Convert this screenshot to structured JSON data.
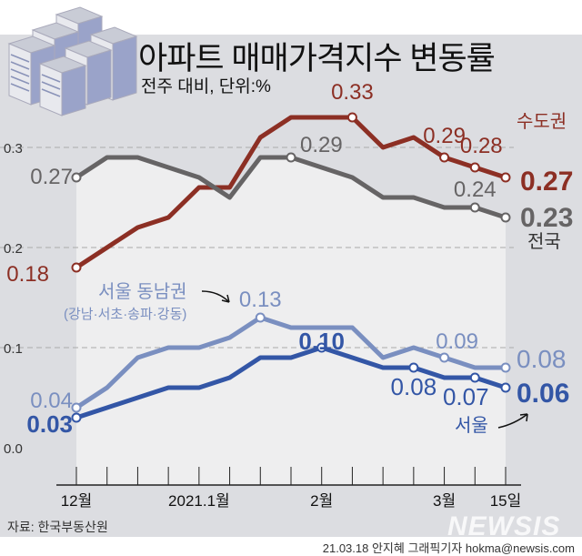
{
  "header": {
    "title": "아파트 매매가격지수 변동률",
    "subtitle": "전주 대비, 단위:%"
  },
  "footer": {
    "source": "자료: 한국부동산원",
    "credit": "21.03.18 안지혜 그래픽기자 hokma@newsis.com",
    "logo": "NEWSIS"
  },
  "chart_data": {
    "type": "line",
    "title": "아파트 매매가격지수 변동률",
    "subtitle": "전주 대비, 단위:%",
    "x_tick_labels": [
      {
        "index": 0,
        "label": "12월"
      },
      {
        "index": 4,
        "label": "2021.1월"
      },
      {
        "index": 8,
        "label": "2월"
      },
      {
        "index": 12,
        "label": "3월"
      },
      {
        "index": 14,
        "label": "15일"
      }
    ],
    "y_ticks": [
      "0.0",
      "0.1",
      "0.2",
      "0.3"
    ],
    "ylim": [
      0,
      0.3
    ],
    "grid": "dashed horizontal",
    "series": [
      {
        "name": "수도권",
        "color": "#8c2f24",
        "values": [
          0.18,
          0.2,
          0.22,
          0.23,
          0.26,
          0.26,
          0.31,
          0.33,
          0.33,
          0.33,
          0.3,
          0.31,
          0.29,
          0.28,
          0.27
        ],
        "labels": [
          {
            "index": 0,
            "text": "0.18"
          },
          {
            "index": 9,
            "text": "0.33"
          },
          {
            "index": 12,
            "text": "0.29"
          },
          {
            "index": 13,
            "text": "0.28"
          },
          {
            "index": 14,
            "text": "0.27"
          }
        ]
      },
      {
        "name": "전국",
        "color": "#666465",
        "values": [
          0.27,
          0.29,
          0.29,
          0.28,
          0.27,
          0.25,
          0.29,
          0.29,
          0.28,
          0.27,
          0.25,
          0.25,
          0.24,
          0.24,
          0.23
        ],
        "labels": [
          {
            "index": 0,
            "text": "0.27"
          },
          {
            "index": 7,
            "text": "0.29"
          },
          {
            "index": 13,
            "text": "0.24"
          },
          {
            "index": 14,
            "text": "0.23"
          }
        ]
      },
      {
        "name": "서울 동남권",
        "sub": "(강남·서초·송파·강동)",
        "color": "#7a8fc0",
        "values": [
          0.04,
          0.06,
          0.09,
          0.1,
          0.1,
          0.11,
          0.13,
          0.12,
          0.12,
          0.12,
          0.09,
          0.1,
          0.09,
          0.08,
          0.08
        ],
        "labels": [
          {
            "index": 0,
            "text": "0.04"
          },
          {
            "index": 6,
            "text": "0.13"
          },
          {
            "index": 12,
            "text": "0.09"
          },
          {
            "index": 14,
            "text": "0.08"
          }
        ]
      },
      {
        "name": "서울",
        "color": "#3356a6",
        "values": [
          0.03,
          0.04,
          0.05,
          0.06,
          0.06,
          0.07,
          0.09,
          0.09,
          0.1,
          0.09,
          0.08,
          0.08,
          0.07,
          0.07,
          0.06
        ],
        "labels": [
          {
            "index": 0,
            "text": "0.03"
          },
          {
            "index": 8,
            "text": "0.10"
          },
          {
            "index": 11,
            "text": "0.08"
          },
          {
            "index": 13,
            "text": "0.07"
          },
          {
            "index": 14,
            "text": "0.06"
          }
        ]
      }
    ]
  }
}
